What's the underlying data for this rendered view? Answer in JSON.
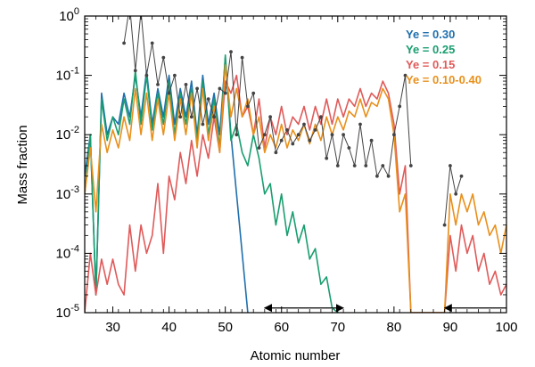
{
  "chart_data": {
    "type": "line",
    "title": "",
    "xlabel": "Atomic number",
    "ylabel": "Mass fraction",
    "xlim": [
      25,
      100
    ],
    "ylim": [
      1e-05,
      1
    ],
    "yscale": "log",
    "grid": false,
    "legend_position": "top-right",
    "x_ticks": [
      30,
      40,
      50,
      60,
      70,
      80,
      90,
      100
    ],
    "x_tick_labels": [
      "30",
      "40",
      "50",
      "60",
      "70",
      "80",
      "90",
      "100"
    ],
    "y_ticks": [
      1e-05,
      0.0001,
      0.001,
      0.01,
      0.1,
      1
    ],
    "y_tick_labels": [
      {
        "base": "10",
        "exp": "-5"
      },
      {
        "base": "10",
        "exp": "-4"
      },
      {
        "base": "10",
        "exp": "-3"
      },
      {
        "base": "10",
        "exp": "-2"
      },
      {
        "base": "10",
        "exp": "-1"
      },
      {
        "base": "10",
        "exp": "0"
      }
    ],
    "series": [
      {
        "name": "Ye = 0.30",
        "color": "#1f6fad",
        "x": [
          25,
          26,
          27,
          28,
          29,
          30,
          31,
          32,
          33,
          34,
          35,
          36,
          37,
          38,
          39,
          40,
          41,
          42,
          43,
          44,
          45,
          46,
          47,
          48,
          49,
          50,
          51,
          52,
          53,
          54
        ],
        "y": [
          0.002,
          0.01,
          2e-05,
          0.05,
          0.01,
          0.02,
          0.015,
          0.05,
          0.02,
          0.1,
          0.02,
          0.12,
          0.015,
          0.06,
          0.02,
          0.1,
          0.015,
          0.06,
          0.02,
          0.08,
          0.01,
          0.1,
          0.015,
          0.05,
          0.01,
          0.2,
          0.01,
          0.001,
          0.0001,
          1e-05
        ]
      },
      {
        "name": "Ye = 0.25",
        "color": "#1a9e6f",
        "x": [
          25,
          26,
          27,
          28,
          29,
          30,
          31,
          32,
          33,
          34,
          35,
          36,
          37,
          38,
          39,
          40,
          41,
          42,
          43,
          44,
          45,
          46,
          47,
          48,
          49,
          50,
          51,
          52,
          53,
          54,
          55,
          56,
          57,
          58,
          59,
          60,
          61,
          62,
          63,
          64,
          65,
          66,
          67,
          68,
          69,
          70
        ],
        "y": [
          0.001,
          0.01,
          2e-05,
          0.04,
          0.008,
          0.02,
          0.01,
          0.04,
          0.015,
          0.12,
          0.015,
          0.1,
          0.012,
          0.05,
          0.015,
          0.08,
          0.01,
          0.05,
          0.015,
          0.06,
          0.008,
          0.08,
          0.01,
          0.04,
          0.006,
          0.22,
          0.008,
          0.015,
          0.005,
          0.003,
          0.01,
          0.004,
          0.001,
          0.0015,
          0.0003,
          0.001,
          0.0002,
          0.0005,
          0.00015,
          0.0003,
          8e-05,
          0.00012,
          3e-05,
          4e-05,
          1.2e-05,
          1e-05
        ]
      },
      {
        "name": "Ye = 0.15",
        "color": "#e05a5a",
        "x": [
          25,
          26,
          27,
          28,
          29,
          30,
          31,
          32,
          33,
          34,
          35,
          36,
          37,
          38,
          39,
          40,
          41,
          42,
          43,
          44,
          45,
          46,
          47,
          48,
          49,
          50,
          51,
          52,
          53,
          54,
          55,
          56,
          57,
          58,
          59,
          60,
          61,
          62,
          63,
          64,
          65,
          66,
          67,
          68,
          69,
          70,
          71,
          72,
          73,
          74,
          75,
          76,
          77,
          78,
          79,
          80,
          81,
          82,
          83,
          84,
          85,
          86,
          87,
          88,
          89,
          90,
          91,
          92,
          93,
          94,
          95,
          96,
          97,
          98,
          99,
          100
        ],
        "y": [
          1e-05,
          0.0001,
          2e-05,
          8e-05,
          3e-05,
          8e-05,
          3e-05,
          2e-05,
          0.0003,
          5e-05,
          0.0003,
          0.0001,
          0.0002,
          0.0015,
          0.0001,
          0.002,
          0.0008,
          0.005,
          0.0015,
          0.008,
          0.002,
          0.01,
          0.004,
          0.02,
          0.005,
          0.08,
          0.05,
          0.1,
          0.02,
          0.03,
          0.01,
          0.04,
          0.006,
          0.02,
          0.01,
          0.03,
          0.01,
          0.02,
          0.015,
          0.03,
          0.012,
          0.03,
          0.015,
          0.04,
          0.015,
          0.04,
          0.02,
          0.04,
          0.03,
          0.06,
          0.03,
          0.05,
          0.04,
          0.08,
          0.05,
          0.015,
          0.001,
          0.003,
          1e-05,
          1e-05,
          1e-05,
          1e-05,
          1e-05,
          1e-05,
          1e-05,
          0.0002,
          5e-05,
          0.0003,
          0.0001,
          0.0002,
          5e-05,
          0.0001,
          3e-05,
          5e-05,
          2e-05,
          3e-05
        ]
      },
      {
        "name": "Ye = 0.10-0.40",
        "color": "#e8901c",
        "x": [
          25,
          26,
          27,
          28,
          29,
          30,
          31,
          32,
          33,
          34,
          35,
          36,
          37,
          38,
          39,
          40,
          41,
          42,
          43,
          44,
          45,
          46,
          47,
          48,
          49,
          50,
          51,
          52,
          53,
          54,
          55,
          56,
          57,
          58,
          59,
          60,
          61,
          62,
          63,
          64,
          65,
          66,
          67,
          68,
          69,
          70,
          71,
          72,
          73,
          74,
          75,
          76,
          77,
          78,
          79,
          80,
          81,
          82,
          83,
          84,
          85,
          86,
          87,
          88,
          89,
          90,
          91,
          92,
          93,
          94,
          95,
          96,
          97,
          98,
          99,
          100
        ],
        "y": [
          0.001,
          0.006,
          0.0005,
          0.015,
          0.005,
          0.012,
          0.006,
          0.02,
          0.008,
          0.06,
          0.01,
          0.05,
          0.008,
          0.04,
          0.01,
          0.05,
          0.008,
          0.04,
          0.01,
          0.05,
          0.006,
          0.06,
          0.008,
          0.03,
          0.005,
          0.15,
          0.02,
          0.06,
          0.02,
          0.04,
          0.01,
          0.02,
          0.005,
          0.01,
          0.006,
          0.015,
          0.006,
          0.012,
          0.008,
          0.015,
          0.007,
          0.015,
          0.008,
          0.02,
          0.01,
          0.02,
          0.012,
          0.025,
          0.02,
          0.04,
          0.02,
          0.035,
          0.03,
          0.06,
          0.04,
          0.01,
          0.0005,
          0.001,
          1e-05,
          1e-05,
          1e-05,
          1e-05,
          1e-05,
          1e-05,
          1e-05,
          0.001,
          0.0003,
          0.001,
          0.0005,
          0.001,
          0.0003,
          0.0005,
          0.0002,
          0.0003,
          0.0001,
          0.0003
        ]
      },
      {
        "name": "",
        "color": "#444444",
        "marker": "dot",
        "x": [
          32,
          33,
          34,
          35,
          36,
          37,
          38,
          39,
          40,
          41,
          42,
          43,
          44,
          45,
          46,
          47,
          48,
          49,
          50,
          51,
          52,
          53,
          54,
          55,
          56,
          57,
          58,
          59,
          60,
          61,
          62,
          63,
          64,
          65,
          66,
          67,
          68,
          69,
          70,
          71,
          72,
          73,
          74,
          75,
          76,
          77,
          78,
          79,
          80,
          81,
          82,
          83
        ],
        "y": [
          0.35,
          1.5,
          0.12,
          1.2,
          0.1,
          0.35,
          0.07,
          0.2,
          0.05,
          0.1,
          0.02,
          0.07,
          0.02,
          0.06,
          0.015,
          0.04,
          0.02,
          0.06,
          0.05,
          0.25,
          0.01,
          0.2,
          0.03,
          0.05,
          0.006,
          0.01,
          0.02,
          0.005,
          0.008,
          0.012,
          0.007,
          0.01,
          0.015,
          0.008,
          0.012,
          0.02,
          0.004,
          0.01,
          0.003,
          0.01,
          0.006,
          0.003,
          0.015,
          0.003,
          0.008,
          0.002,
          0.003,
          0.002,
          0.01,
          0.03,
          0.1,
          0.003
        ]
      },
      {
        "name": "",
        "color": "#444444",
        "marker": "dot",
        "x": [
          89,
          90,
          91,
          92
        ],
        "y": [
          0.0003,
          0.003,
          0.001,
          0.002
        ]
      }
    ],
    "annotations": [
      {
        "type": "double-arrow",
        "y": 1.2e-05,
        "x_from": 57,
        "x_to": 71
      },
      {
        "type": "arrow-left",
        "y": 1.2e-05,
        "x_from": 100,
        "x_to": 89
      }
    ]
  }
}
